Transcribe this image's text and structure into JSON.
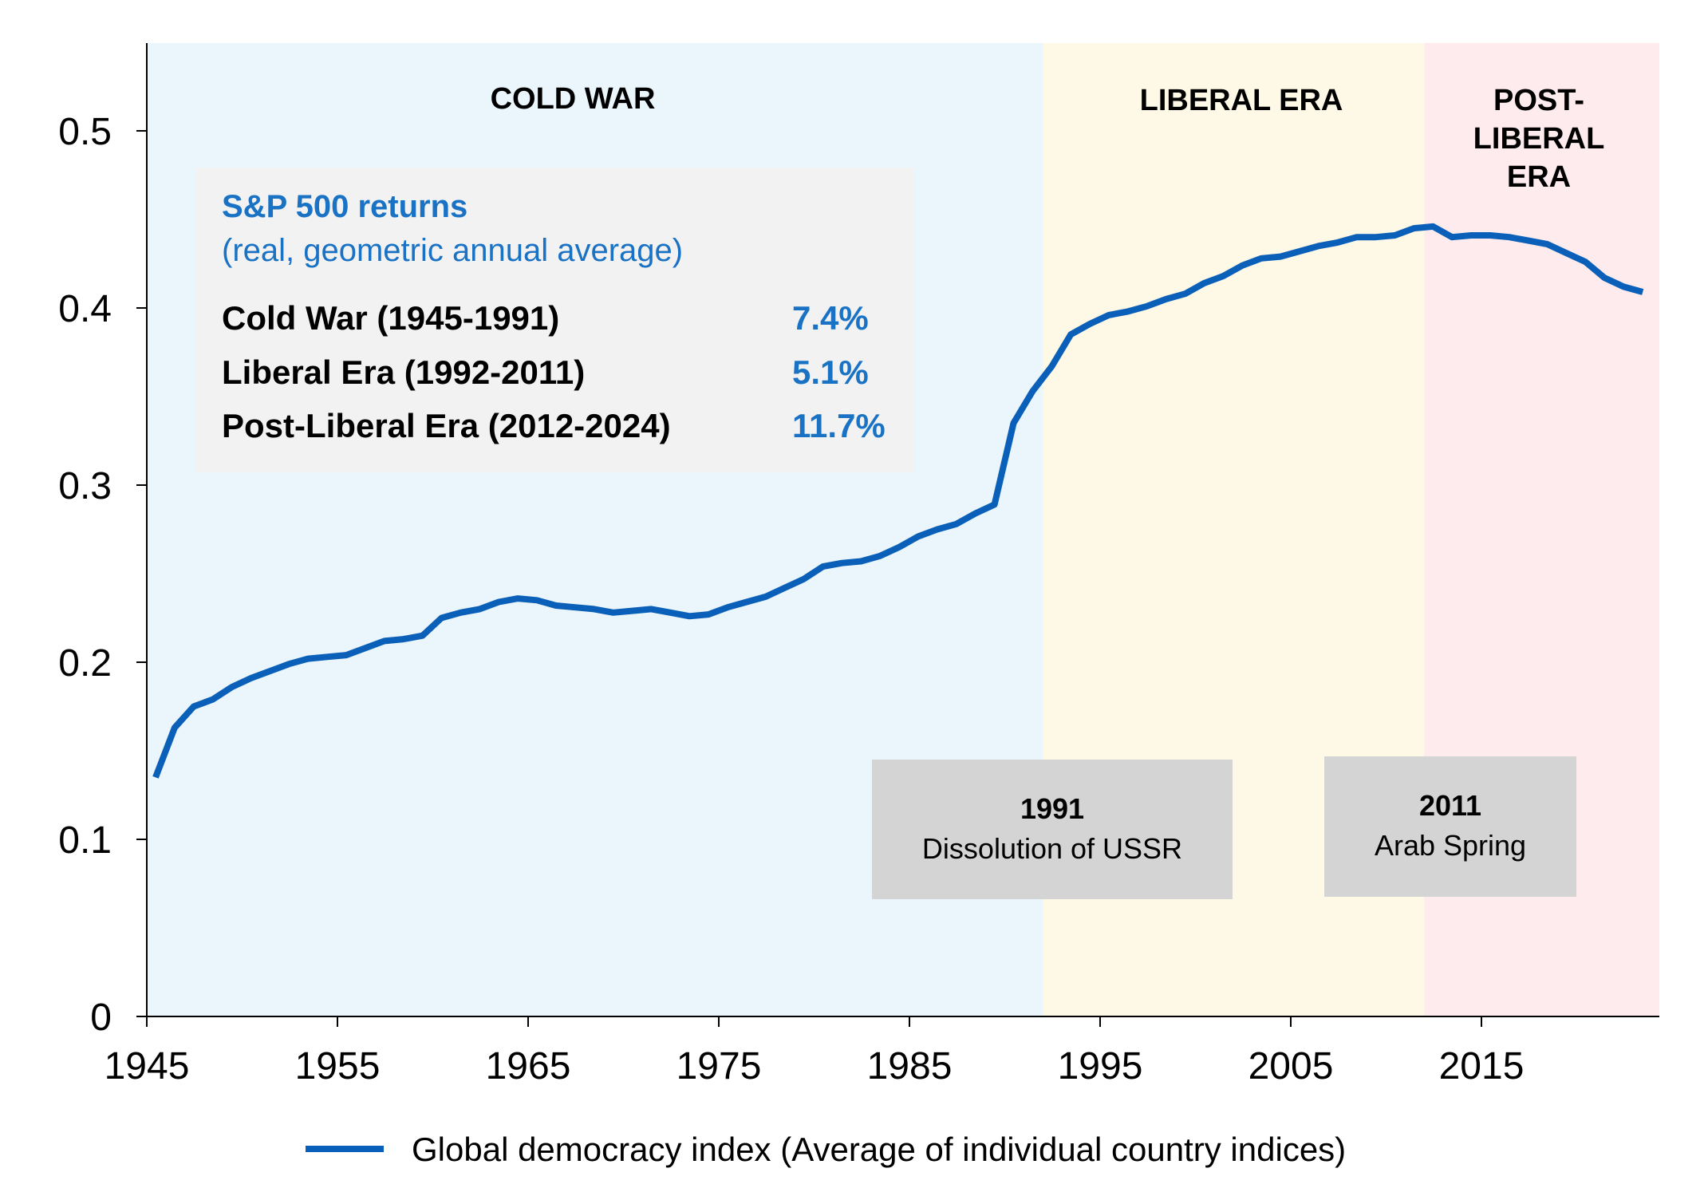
{
  "chart_data": {
    "type": "line",
    "xlim": [
      1945,
      2024
    ],
    "ylim": [
      0,
      0.55
    ],
    "x_ticks": [
      "1945",
      "1955",
      "1965",
      "1975",
      "1985",
      "1995",
      "2005",
      "2015"
    ],
    "y_ticks": [
      "0",
      "0.1",
      "0.2",
      "0.3",
      "0.4",
      "0.5"
    ],
    "grid": false,
    "legend_placement": "bottom",
    "colors": {
      "line": "#0a5fb8",
      "cold_war_bg": "#eaf5fc",
      "liberal_bg": "#fef8e6",
      "post_liberal_bg": "#fdebee",
      "accent_text": "#1a72c4",
      "event_box": "#d4d4d4",
      "info_box": "#f2f2f2"
    },
    "eras": [
      {
        "label": "COLD WAR",
        "from": 1945,
        "to": 1992
      },
      {
        "label": "LIBERAL ERA",
        "from": 1992,
        "to": 2012
      },
      {
        "label": "POST-LIBERAL ERA",
        "label_lines": [
          "POST-",
          "LIBERAL",
          "ERA"
        ],
        "from": 2012,
        "to": 2024
      }
    ],
    "info_box": {
      "title": "S&P 500 returns",
      "subtitle": "(real, geometric annual average)",
      "rows": [
        {
          "label": "Cold War (1945-1991)",
          "value": "7.4%"
        },
        {
          "label": "Liberal Era (1992-2011)",
          "value": "5.1%"
        },
        {
          "label": "Post-Liberal Era (2012-2024)",
          "value": "11.7%"
        }
      ]
    },
    "events": [
      {
        "year": "1991",
        "text": "Dissolution of USSR"
      },
      {
        "year": "2011",
        "text": "Arab Spring"
      }
    ],
    "series": [
      {
        "name": "Global democracy index (Average of individual country indices)",
        "x": [
          1945,
          1946,
          1947,
          1948,
          1949,
          1950,
          1951,
          1952,
          1953,
          1954,
          1955,
          1956,
          1957,
          1958,
          1959,
          1960,
          1961,
          1962,
          1963,
          1964,
          1965,
          1966,
          1967,
          1968,
          1969,
          1970,
          1971,
          1972,
          1973,
          1974,
          1975,
          1976,
          1977,
          1978,
          1979,
          1980,
          1981,
          1982,
          1983,
          1984,
          1985,
          1986,
          1987,
          1988,
          1989,
          1990,
          1991,
          1992,
          1993,
          1994,
          1995,
          1996,
          1997,
          1998,
          1999,
          2000,
          2001,
          2002,
          2003,
          2004,
          2005,
          2006,
          2007,
          2008,
          2009,
          2010,
          2011,
          2012,
          2013,
          2014,
          2015,
          2016,
          2017,
          2018,
          2019,
          2020,
          2021,
          2022,
          2023
        ],
        "y": [
          0.135,
          0.163,
          0.175,
          0.179,
          0.186,
          0.191,
          0.195,
          0.199,
          0.202,
          0.203,
          0.204,
          0.208,
          0.212,
          0.213,
          0.215,
          0.225,
          0.228,
          0.23,
          0.234,
          0.236,
          0.235,
          0.232,
          0.231,
          0.23,
          0.228,
          0.229,
          0.23,
          0.228,
          0.226,
          0.227,
          0.231,
          0.234,
          0.237,
          0.242,
          0.247,
          0.254,
          0.256,
          0.257,
          0.26,
          0.265,
          0.271,
          0.275,
          0.278,
          0.284,
          0.289,
          0.335,
          0.353,
          0.367,
          0.385,
          0.391,
          0.396,
          0.398,
          0.401,
          0.405,
          0.408,
          0.414,
          0.418,
          0.424,
          0.428,
          0.429,
          0.432,
          0.435,
          0.437,
          0.44,
          0.44,
          0.441,
          0.445,
          0.446,
          0.44,
          0.441,
          0.441,
          0.44,
          0.438,
          0.436,
          0.431,
          0.426,
          0.417,
          0.412,
          0.409
        ]
      }
    ]
  }
}
